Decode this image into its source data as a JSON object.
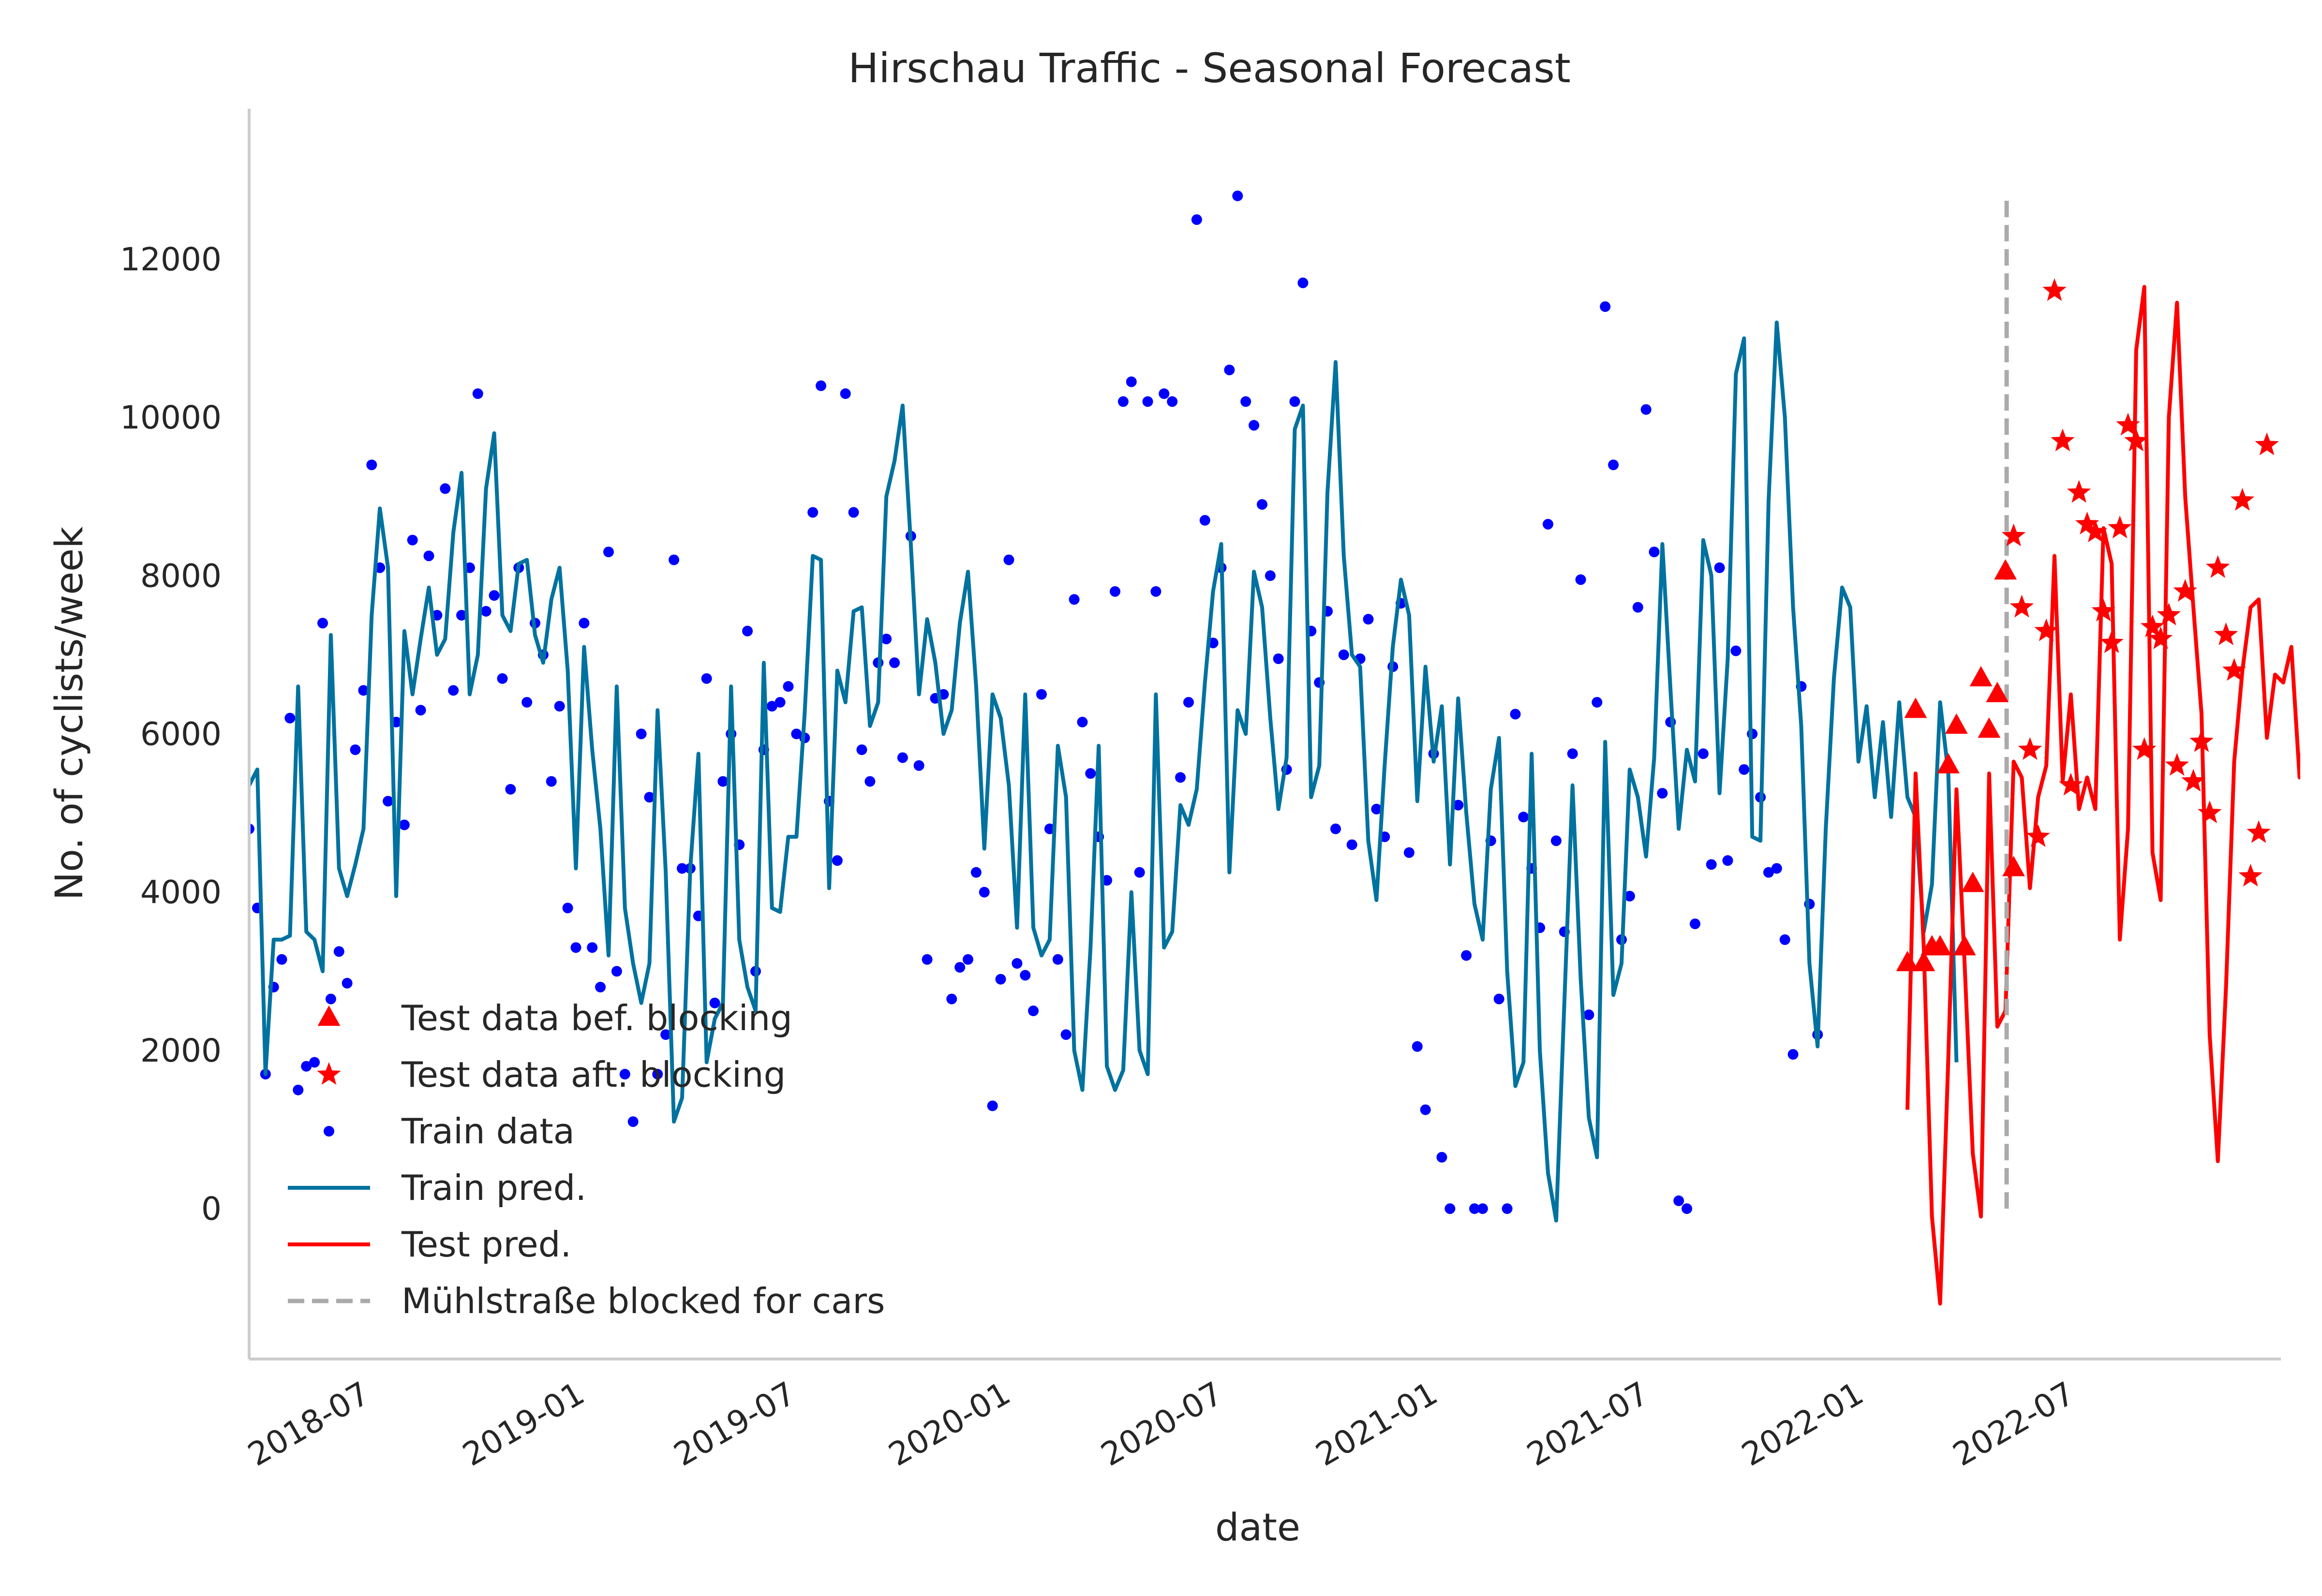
{
  "chart_data": {
    "type": "line",
    "title": "Hirschau Traffic - Seasonal Forecast",
    "xlabel": "date",
    "ylabel": "No. of cyclists/week",
    "xlim": [
      "2018-03-26",
      "2022-12-31"
    ],
    "ylim": [
      -1900,
      13900
    ],
    "x_ticks": [
      "2018-07",
      "2019-01",
      "2019-07",
      "2020-01",
      "2020-07",
      "2021-01",
      "2021-07",
      "2022-01",
      "2022-07"
    ],
    "y_ticks": [
      0,
      2000,
      4000,
      6000,
      8000,
      10000,
      12000
    ],
    "grid": false,
    "legend_position": "lower-left",
    "colors": {
      "train_data": "#0000ff",
      "train_pred": "#00729f",
      "test_data": "#ff0000",
      "test_pred": "#ff0000",
      "blocking_line": "#aaaaaa",
      "axes": "#cccccc"
    },
    "blocking": {
      "label": "Mühlstraße blocked for cars",
      "date": "2022-05-10",
      "y_range": [
        0,
        12800
      ]
    },
    "train_data": {
      "name": "Train data",
      "start": "2018-03-26",
      "step_days": 7,
      "y": [
        4800,
        3800,
        1700,
        2800,
        3150,
        6200,
        1500,
        1800,
        1850,
        7400,
        2650,
        3250,
        2850,
        5800,
        6550,
        9400,
        8100,
        5150,
        6150,
        4850,
        8450,
        6300,
        8250,
        7500,
        9100,
        6550,
        7500,
        8100,
        10300,
        7550,
        7750,
        6700,
        5300,
        8100,
        6400,
        7400,
        7000,
        5400,
        6350,
        3800,
        3300,
        7400,
        3300,
        2800,
        8300,
        3000,
        1700,
        1100,
        6000,
        5200,
        1700,
        2200,
        8200,
        4300,
        4300,
        3700,
        6700,
        2600,
        5400,
        6000,
        4600,
        7300,
        3000,
        5800,
        6350,
        6400,
        6600,
        6000,
        5950,
        8800,
        10400,
        5150,
        4400,
        10300,
        8800,
        5800,
        5400,
        6900,
        7200,
        6900,
        5700,
        8500,
        5600,
        3150,
        6450,
        6500,
        2650,
        3050,
        3150,
        4250,
        4000,
        1300,
        2900,
        8200,
        3100,
        2950,
        2500,
        6500,
        4800,
        3150,
        2200,
        7700,
        6150,
        5500,
        4700,
        4150,
        7800,
        10200,
        10450,
        4250,
        10200,
        7800,
        10300,
        10200,
        5450,
        6400,
        12500,
        8700,
        7150,
        8100,
        10600,
        12800,
        10200,
        9900,
        8900,
        8000,
        6950,
        5550,
        10200,
        11700,
        7300,
        6650,
        7550,
        4800,
        7000,
        4600,
        6950,
        7450,
        5050,
        4700,
        6850,
        7650,
        4500,
        2050,
        1250,
        5750,
        650,
        0,
        5100,
        3200,
        0,
        0,
        4650,
        2650,
        0,
        6250,
        4950,
        4300,
        3550,
        8650,
        4650,
        3500,
        5750,
        7950,
        2450,
        6400,
        11400,
        9400,
        3400,
        3950,
        7600,
        10100,
        8300,
        5250,
        6150,
        100,
        0,
        3600,
        5750,
        4350,
        8100,
        4400,
        7050,
        5550,
        6000,
        5200,
        4250,
        4300,
        3400,
        1950,
        6600,
        3850,
        2200
      ]
    },
    "train_pred": {
      "name": "Train pred.",
      "start": "2018-03-26",
      "step_days": 7,
      "y": [
        5350,
        5550,
        1700,
        3400,
        3400,
        3450,
        6600,
        3500,
        3400,
        3000,
        7250,
        4300,
        3950,
        4350,
        4800,
        7500,
        8850,
        8100,
        3950,
        7300,
        6500,
        7200,
        7850,
        7000,
        7200,
        8550,
        9300,
        6500,
        7000,
        9100,
        9800,
        7500,
        7300,
        8150,
        8200,
        7250,
        6900,
        7700,
        8100,
        6800,
        4300,
        7100,
        5800,
        4800,
        3200,
        6600,
        3800,
        3100,
        2600,
        3100,
        6300,
        4250,
        1100,
        1400,
        4300,
        5750,
        1850,
        2400,
        2600,
        6600,
        3400,
        2800,
        2500,
        6900,
        3800,
        3750,
        4700,
        4700,
        6250,
        8250,
        8200,
        4050,
        6800,
        6400,
        7550,
        7600,
        6100,
        6400,
        9000,
        9450,
        10150,
        8400,
        6500,
        7450,
        6900,
        6000,
        6300,
        7400,
        8050,
        6600,
        4550,
        6500,
        6200,
        5350,
        3550,
        6500,
        3550,
        3200,
        3400,
        5850,
        5200,
        2000,
        1500,
        3300,
        5850,
        1800,
        1500,
        1750,
        4000,
        2000,
        1700,
        6500,
        3300,
        3500,
        5100,
        4850,
        5300,
        6650,
        7800,
        8400,
        4250,
        6300,
        6000,
        8050,
        7600,
        6200,
        5050,
        5700,
        9850,
        10150,
        5200,
        5600,
        9050,
        10700,
        8250,
        7000,
        6850,
        4650,
        3900,
        5600,
        7100,
        7950,
        7500,
        5150,
        6850,
        5650,
        6350,
        4350,
        6450,
        5000,
        3850,
        3400,
        5300,
        5950,
        3000,
        1550,
        1850,
        5750,
        2000,
        450,
        -150,
        2600,
        5350,
        2900,
        1150,
        650,
        5900,
        2700,
        3100,
        5550,
        5200,
        4450,
        5700,
        8400,
        6550,
        4800,
        5800,
        5400,
        8450,
        8000,
        5250,
        6950,
        10550,
        11000,
        4700,
        4650,
        8950,
        11200,
        10000,
        7600,
        6100,
        3100,
        2050,
        4800,
        6700,
        7850,
        7600,
        5650,
        6350,
        5200,
        6150,
        4950,
        6400,
        5200,
        4950,
        3500,
        4100,
        6400,
        5500,
        1850
      ]
    },
    "test_before": {
      "name": "Test data bef. blocking",
      "start": "2022-02-14",
      "step_days": 7,
      "y": [
        3100,
        6300,
        3100,
        3300,
        3300,
        5600,
        6100,
        3300,
        4100,
        6700,
        6050,
        6500,
        8050,
        4300
      ]
    },
    "test_after": {
      "name": "Test data aft. blocking",
      "start": "2022-05-16",
      "step_days": 7,
      "y": [
        8500,
        7600,
        5800,
        4700,
        7300,
        11600,
        9700,
        5350,
        9050,
        8650,
        8550,
        7550,
        7150,
        8600,
        9900,
        9700,
        5800,
        7350,
        7200,
        7500,
        5600,
        7800,
        5400,
        5900,
        5000,
        8100,
        7250,
        6800,
        8950,
        4200,
        4750,
        9650
      ]
    },
    "test_pred": {
      "name": "Test pred.",
      "start": "2022-02-14",
      "step_days": 7,
      "y": [
        1250,
        5500,
        3300,
        -100,
        -1200,
        1900,
        5300,
        3100,
        700,
        -100,
        5500,
        2300,
        2500,
        5650,
        5450,
        4050,
        5200,
        5600,
        8250,
        5400,
        6500,
        5050,
        5450,
        5050,
        8600,
        8150,
        3400,
        4800,
        10850,
        11650,
        4500,
        3900,
        10000,
        11450,
        9000,
        7600,
        6250,
        2200,
        600,
        2800,
        5650,
        6800,
        7600,
        7700,
        5950,
        6750,
        6650,
        7100,
        5450,
        6450,
        5150,
        6000,
        3800
      ]
    },
    "legend": [
      {
        "label": "Test data bef. blocking",
        "marker": "triangle",
        "color": "#ff0000"
      },
      {
        "label": "Test data aft. blocking",
        "marker": "star",
        "color": "#ff0000"
      },
      {
        "label": "Train data",
        "marker": "dot",
        "color": "#0000ff"
      },
      {
        "label": "Train pred.",
        "marker": "line",
        "color": "#00729f"
      },
      {
        "label": "Test pred.",
        "marker": "line",
        "color": "#ff0000"
      },
      {
        "label": "Mühlstraße blocked for cars",
        "marker": "dashed-line",
        "color": "#aaaaaa"
      }
    ]
  }
}
